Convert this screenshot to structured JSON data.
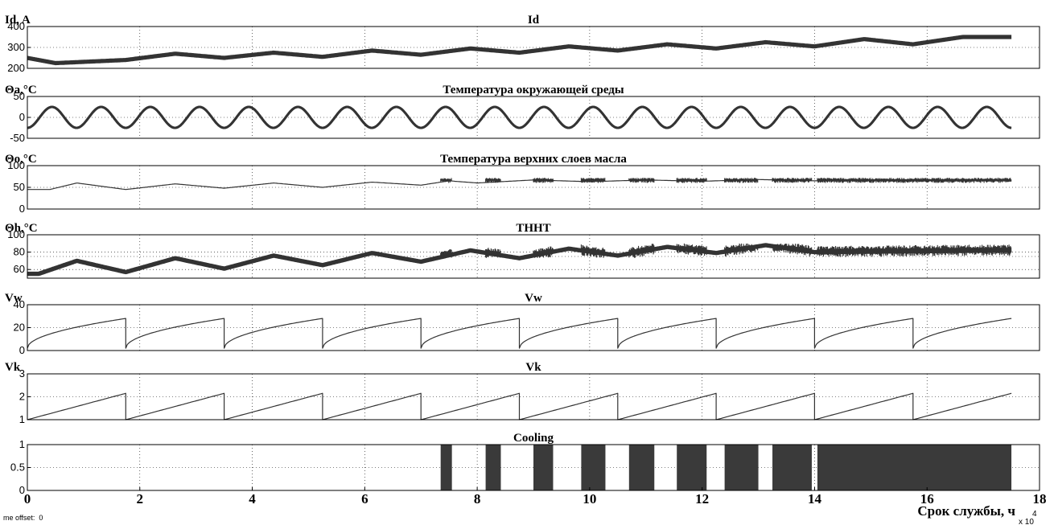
{
  "footer_text": "me offset:  0",
  "x_axis": {
    "label": "Срок службы, ч",
    "exponent_base": "x 10",
    "exponent_power": "4",
    "lim": [
      0,
      18
    ],
    "ticks": [
      "0",
      "2",
      "4",
      "6",
      "8",
      "10",
      "12",
      "14",
      "16",
      "18"
    ]
  },
  "chart_data": [
    {
      "type": "line",
      "title": "Id",
      "ylabel": "Id, A",
      "ylim": [
        200,
        400
      ],
      "yticks": [
        "200",
        "300",
        "400"
      ],
      "grid": true,
      "series": [
        {
          "x": [
            0,
            0.5,
            1.75,
            2.63,
            3.5,
            4.38,
            5.25,
            6.13,
            7.0,
            7.88,
            8.75,
            9.63,
            10.5,
            11.38,
            12.25,
            13.13,
            14.0,
            14.88,
            15.75,
            16.63,
            17.5
          ],
          "y": [
            250,
            225,
            240,
            270,
            250,
            275,
            255,
            285,
            265,
            295,
            275,
            305,
            285,
            315,
            295,
            325,
            305,
            340,
            315,
            350,
            350
          ],
          "band": 20
        }
      ]
    },
    {
      "type": "line",
      "title": "Температура окружающей среды",
      "ylabel": "Θa,°C",
      "ylim": [
        -50,
        50
      ],
      "yticks": [
        "-50",
        "0",
        "50"
      ],
      "grid": true,
      "series": [
        {
          "amplitude": 25,
          "offset": 0,
          "period": 0.875,
          "x_end": 17.5,
          "band": 6
        }
      ]
    },
    {
      "type": "line",
      "title": "Температура верхних слоев масла",
      "ylabel": "Θo,°C",
      "ylim": [
        0,
        100
      ],
      "yticks": [
        "0",
        "50",
        "100"
      ],
      "grid": true,
      "series": [
        {
          "x": [
            0,
            0.4,
            0.88,
            1.75,
            2.63,
            3.5,
            4.38,
            5.25,
            6.13,
            7.0,
            7.5,
            8.0,
            9.0,
            10.0,
            11.0,
            12.0,
            13.0,
            14.0,
            17.5
          ],
          "y": [
            45,
            45,
            60,
            45,
            58,
            48,
            60,
            50,
            62,
            55,
            65,
            60,
            67,
            63,
            67,
            64,
            68,
            65,
            65
          ]
        }
      ],
      "cooling_spikes_range": [
        60,
        72
      ]
    },
    {
      "type": "line",
      "title": "ТННТ",
      "ylabel": "Θh,°C",
      "ylim": [
        50,
        100
      ],
      "yticks": [
        "60",
        "80",
        "100"
      ],
      "grid": true,
      "series": [
        {
          "x": [
            0,
            0.2,
            0.88,
            1.75,
            2.63,
            3.5,
            4.38,
            5.25,
            6.13,
            7.0,
            7.88,
            8.75,
            9.63,
            10.5,
            11.38,
            12.25,
            13.13,
            14.0,
            17.5
          ],
          "y": [
            55,
            55,
            70,
            57,
            73,
            61,
            76,
            65,
            79,
            69,
            82,
            73,
            84,
            76,
            86,
            79,
            88,
            80,
            82
          ],
          "band": 5
        }
      ],
      "noise_range": [
        73,
        90
      ]
    },
    {
      "type": "line",
      "title": "Vw",
      "ylabel": "Vw",
      "ylim": [
        0,
        40
      ],
      "yticks": [
        "0",
        "20",
        "40"
      ],
      "grid": true,
      "series": [
        {
          "cycle_start_x": [
            0,
            1.75,
            3.5,
            5.25,
            7.0,
            8.75,
            10.5,
            12.25,
            14.0,
            15.75
          ],
          "cycle_end_x": 17.5,
          "start_value": 2,
          "peak_value": 28
        }
      ]
    },
    {
      "type": "line",
      "title": "Vk",
      "ylabel": "Vk",
      "ylim": [
        1,
        3
      ],
      "yticks": [
        "1",
        "2",
        "3"
      ],
      "grid": true,
      "series": [
        {
          "cycle_start_x": [
            0,
            1.75,
            3.5,
            5.25,
            7.0,
            8.75,
            10.5,
            12.25,
            14.0,
            15.75
          ],
          "cycle_end_x": 17.5,
          "start_value": 1.0,
          "peak_value": 2.15
        }
      ]
    },
    {
      "type": "bar",
      "title": "Cooling",
      "ylabel": "",
      "ylim": [
        0,
        1
      ],
      "yticks": [
        "0",
        "0.5",
        "1"
      ],
      "grid": true,
      "on_intervals": [
        [
          7.35,
          7.55
        ],
        [
          8.15,
          8.42
        ],
        [
          9.0,
          9.35
        ],
        [
          9.85,
          10.28
        ],
        [
          10.7,
          11.15
        ],
        [
          11.55,
          12.08
        ],
        [
          12.4,
          13.0
        ],
        [
          13.25,
          13.95
        ],
        [
          14.05,
          17.5
        ]
      ]
    }
  ]
}
